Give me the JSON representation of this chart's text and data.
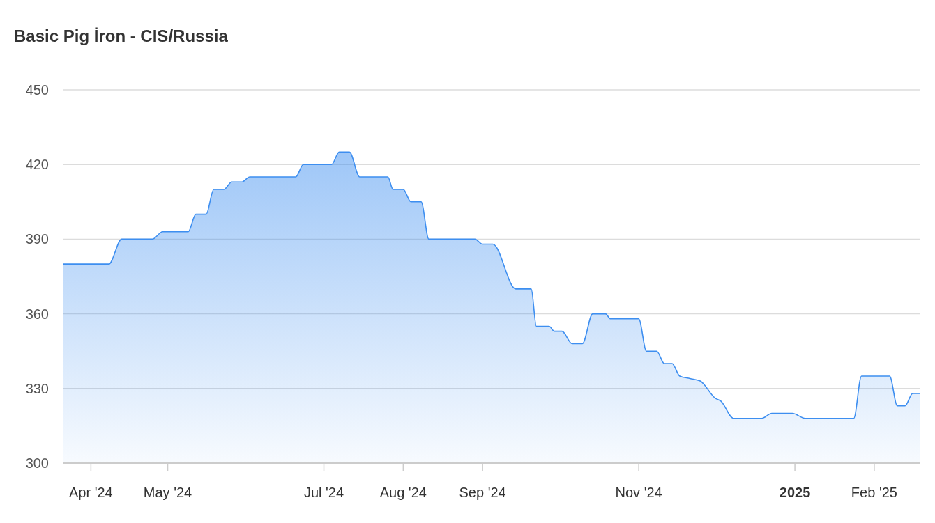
{
  "chart_data": {
    "type": "area",
    "title": "Basic Pig İron - CIS/Russia",
    "x": [
      "2024-03-21",
      "2024-04-08",
      "2024-04-13",
      "2024-04-25",
      "2024-04-29",
      "2024-05-09",
      "2024-05-12",
      "2024-05-16",
      "2024-05-19",
      "2024-05-23",
      "2024-05-26",
      "2024-05-30",
      "2024-06-02",
      "2024-06-20",
      "2024-06-23",
      "2024-07-04",
      "2024-07-07",
      "2024-07-11",
      "2024-07-15",
      "2024-07-26",
      "2024-07-28",
      "2024-08-01",
      "2024-08-04",
      "2024-08-08",
      "2024-08-11",
      "2024-08-29",
      "2024-09-01",
      "2024-09-05",
      "2024-09-14",
      "2024-09-20",
      "2024-09-22",
      "2024-09-27",
      "2024-09-29",
      "2024-10-02",
      "2024-10-06",
      "2024-10-10",
      "2024-10-14",
      "2024-10-19",
      "2024-10-21",
      "2024-11-01",
      "2024-11-04",
      "2024-11-08",
      "2024-11-11",
      "2024-11-14",
      "2024-11-17",
      "2024-11-21",
      "2024-11-25",
      "2024-12-01",
      "2024-12-03",
      "2024-12-08",
      "2024-12-19",
      "2024-12-23",
      "2024-12-31",
      "2025-01-05",
      "2025-01-24",
      "2025-01-27",
      "2025-02-07",
      "2025-02-10",
      "2025-02-13",
      "2025-02-16",
      "2025-02-19"
    ],
    "series": [
      {
        "color": "#3d8ef0",
        "values": [
          380,
          380,
          390,
          390,
          393,
          393,
          400,
          400,
          410,
          410,
          413,
          413,
          415,
          415,
          420,
          420,
          425,
          425,
          415,
          415,
          410,
          410,
          405,
          405,
          390,
          390,
          388,
          388,
          370,
          370,
          355,
          355,
          353,
          353,
          348,
          348,
          360,
          360,
          358,
          358,
          345,
          345,
          340,
          340,
          335,
          334,
          333,
          326,
          325,
          318,
          318,
          320,
          320,
          318,
          318,
          335,
          335,
          323,
          323,
          328,
          328
        ]
      }
    ],
    "xlim": [
      "2024-03-21",
      "2025-02-19"
    ],
    "xticks": [
      {
        "value": "2024-04-01",
        "label": "Apr '24"
      },
      {
        "value": "2024-05-01",
        "label": "May '24"
      },
      {
        "value": "2024-07-01",
        "label": "Jul '24"
      },
      {
        "value": "2024-08-01",
        "label": "Aug '24"
      },
      {
        "value": "2024-09-01",
        "label": "Sep '24"
      },
      {
        "value": "2024-11-01",
        "label": "Nov '24"
      },
      {
        "value": "2025-01-01",
        "label": "2025"
      },
      {
        "value": "2025-02-01",
        "label": "Feb '25"
      }
    ],
    "ylim": [
      300,
      450
    ],
    "yticks": [
      300,
      330,
      360,
      390,
      420,
      450
    ],
    "grid": "y",
    "marker": "none",
    "line_style": "solid"
  }
}
